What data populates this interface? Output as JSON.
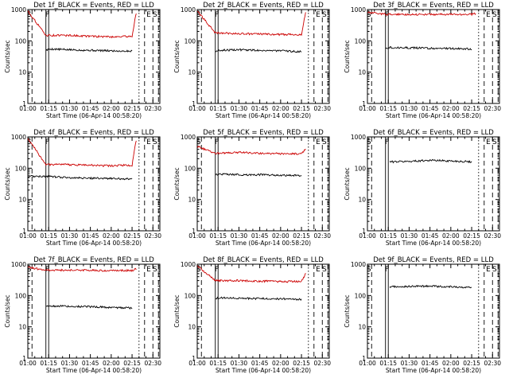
{
  "figure": {
    "ylabel": "Counts/sec",
    "xlabel": "Start Time (06-Apr-14 00:58:20)",
    "ytick_labels": [
      "1",
      "10",
      "100",
      "1000"
    ],
    "xtick_labels": [
      "01:00",
      "01:15",
      "01:30",
      "01:45",
      "02:00",
      "02:15",
      "02:30"
    ],
    "marker_labels": [
      "S",
      "F",
      "E",
      "S"
    ],
    "colors": {
      "events": "#000000",
      "lld": "#cc0000",
      "axis": "#000000"
    }
  },
  "chart_data": [
    {
      "type": "line",
      "title": "Det 1f_BLACK = Events, RED = LLD",
      "ylim": [
        1,
        1000
      ],
      "yscale": "log",
      "series": [
        {
          "name": "Events",
          "color": "#000000",
          "x": [
            "01:13",
            "01:16",
            "01:30",
            "01:45",
            "02:00",
            "02:15"
          ],
          "values": [
            50,
            55,
            52,
            50,
            48,
            47
          ]
        },
        {
          "name": "LLD",
          "color": "#cc0000",
          "x": [
            "01:00",
            "01:13",
            "01:30",
            "01:45",
            "02:00",
            "02:15",
            "02:18"
          ],
          "values": [
            900,
            150,
            150,
            140,
            135,
            140,
            800
          ]
        }
      ]
    },
    {
      "type": "line",
      "title": "Det 2f_BLACK = Events, RED = LLD",
      "ylim": [
        1,
        1000
      ],
      "yscale": "log",
      "series": [
        {
          "name": "Events",
          "color": "#000000",
          "x": [
            "01:13",
            "01:16",
            "01:30",
            "01:45",
            "02:00",
            "02:15"
          ],
          "values": [
            45,
            50,
            52,
            50,
            48,
            45
          ]
        },
        {
          "name": "LLD",
          "color": "#cc0000",
          "x": [
            "01:00",
            "01:13",
            "01:30",
            "01:45",
            "02:00",
            "02:15",
            "02:18"
          ],
          "values": [
            900,
            180,
            170,
            165,
            160,
            160,
            800
          ]
        }
      ]
    },
    {
      "type": "line",
      "title": "Det 3f_BLACK = Events, RED = LLD",
      "ylim": [
        1,
        1000
      ],
      "yscale": "log",
      "series": [
        {
          "name": "Events",
          "color": "#000000",
          "x": [
            "01:13",
            "01:16",
            "01:30",
            "01:45",
            "02:00",
            "02:15"
          ],
          "values": [
            60,
            62,
            60,
            58,
            57,
            55
          ]
        },
        {
          "name": "LLD",
          "color": "#cc0000",
          "x": [
            "01:00",
            "01:15",
            "01:30",
            "01:45",
            "02:00",
            "02:15",
            "02:18"
          ],
          "values": [
            800,
            700,
            700,
            700,
            700,
            700,
            750
          ]
        }
      ]
    },
    {
      "type": "line",
      "title": "Det 4f_BLACK = Events, RED = LLD",
      "ylim": [
        1,
        1000
      ],
      "yscale": "log",
      "series": [
        {
          "name": "Events",
          "color": "#000000",
          "x": [
            "01:00",
            "01:13",
            "01:30",
            "01:45",
            "02:00",
            "02:15"
          ],
          "values": [
            55,
            55,
            50,
            48,
            47,
            45
          ]
        },
        {
          "name": "LLD",
          "color": "#cc0000",
          "x": [
            "01:00",
            "01:13",
            "01:30",
            "01:45",
            "02:00",
            "02:15",
            "02:18"
          ],
          "values": [
            900,
            130,
            130,
            125,
            120,
            125,
            800
          ]
        }
      ]
    },
    {
      "type": "line",
      "title": "Det 5f_BLACK = Events, RED = LLD",
      "ylim": [
        1,
        1000
      ],
      "yscale": "log",
      "series": [
        {
          "name": "Events",
          "color": "#000000",
          "x": [
            "01:13",
            "01:16",
            "01:30",
            "01:45",
            "02:00",
            "02:15"
          ],
          "values": [
            60,
            65,
            62,
            62,
            60,
            58
          ]
        },
        {
          "name": "LLD",
          "color": "#cc0000",
          "x": [
            "01:00",
            "01:13",
            "01:30",
            "01:45",
            "02:00",
            "02:15",
            "02:18"
          ],
          "values": [
            500,
            300,
            320,
            300,
            290,
            290,
            400
          ]
        }
      ]
    },
    {
      "type": "line",
      "title": "Det 6f_BLACK = Events, RED = LLD",
      "ylim": [
        1,
        1000
      ],
      "yscale": "log",
      "series": [
        {
          "name": "Events",
          "color": "#000000",
          "x": [
            "01:16",
            "01:30",
            "01:45",
            "02:00",
            "02:15"
          ],
          "values": [
            160,
            165,
            180,
            170,
            160
          ]
        }
      ]
    },
    {
      "type": "line",
      "title": "Det 7f_BLACK = Events, RED = LLD",
      "ylim": [
        1,
        1000
      ],
      "yscale": "log",
      "series": [
        {
          "name": "Events",
          "color": "#000000",
          "x": [
            "01:13",
            "01:16",
            "01:30",
            "01:45",
            "02:00",
            "02:15"
          ],
          "values": [
            45,
            47,
            45,
            44,
            42,
            40
          ]
        },
        {
          "name": "LLD",
          "color": "#cc0000",
          "x": [
            "01:00",
            "01:13",
            "01:30",
            "01:45",
            "02:00",
            "02:15",
            "02:18"
          ],
          "values": [
            800,
            650,
            650,
            640,
            630,
            630,
            700
          ]
        }
      ]
    },
    {
      "type": "line",
      "title": "Det 8f_BLACK = Events, RED = LLD",
      "ylim": [
        1,
        1000
      ],
      "yscale": "log",
      "series": [
        {
          "name": "Events",
          "color": "#000000",
          "x": [
            "01:13",
            "01:16",
            "01:30",
            "01:45",
            "02:00",
            "02:15"
          ],
          "values": [
            80,
            85,
            82,
            80,
            78,
            75
          ]
        },
        {
          "name": "LLD",
          "color": "#cc0000",
          "x": [
            "01:00",
            "01:13",
            "01:30",
            "01:45",
            "02:00",
            "02:15",
            "02:18"
          ],
          "values": [
            900,
            300,
            300,
            290,
            280,
            280,
            500
          ]
        }
      ]
    },
    {
      "type": "line",
      "title": "Det 9f_BLACK = Events, RED = LLD",
      "ylim": [
        1,
        1000
      ],
      "yscale": "log",
      "series": [
        {
          "name": "Events",
          "color": "#000000",
          "x": [
            "01:16",
            "01:30",
            "01:45",
            "02:00",
            "02:15"
          ],
          "values": [
            190,
            195,
            200,
            190,
            180
          ]
        }
      ]
    }
  ]
}
